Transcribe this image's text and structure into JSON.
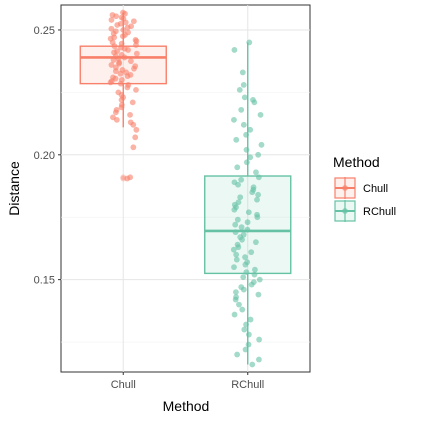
{
  "chart_data": {
    "type": "box",
    "xlabel": "Method",
    "ylabel": "Distance",
    "ylim": [
      0.113,
      0.26
    ],
    "y_ticks": [
      0.15,
      0.2,
      0.25
    ],
    "y_tick_labels": [
      "0.15",
      "0.20",
      "0.25"
    ],
    "categories": [
      "Chull",
      "RChull"
    ],
    "grid": true,
    "legend": {
      "title": "Method",
      "position": "right",
      "entries": [
        "Chull",
        "RChull"
      ]
    },
    "colors": {
      "Chull": "#f8806a",
      "RChull": "#66c2a5"
    },
    "series": [
      {
        "name": "Chull",
        "box": {
          "lower_whisker": 0.211,
          "q1": 0.2285,
          "median": 0.239,
          "q3": 0.2435,
          "upper_whisker": 0.257
        },
        "points": [
          0.257,
          0.2565,
          0.256,
          0.2555,
          0.255,
          0.2545,
          0.254,
          0.2535,
          0.253,
          0.2525,
          0.252,
          0.2515,
          0.251,
          0.2505,
          0.25,
          0.2495,
          0.249,
          0.2485,
          0.248,
          0.2475,
          0.247,
          0.2465,
          0.246,
          0.2455,
          0.245,
          0.2445,
          0.244,
          0.2435,
          0.243,
          0.2425,
          0.242,
          0.2415,
          0.241,
          0.2405,
          0.24,
          0.2395,
          0.239,
          0.2385,
          0.238,
          0.2375,
          0.237,
          0.2365,
          0.236,
          0.2355,
          0.235,
          0.2345,
          0.234,
          0.2335,
          0.233,
          0.2325,
          0.232,
          0.2315,
          0.231,
          0.2305,
          0.23,
          0.2295,
          0.229,
          0.2285,
          0.228,
          0.227,
          0.226,
          0.225,
          0.224,
          0.223,
          0.222,
          0.221,
          0.22,
          0.219,
          0.218,
          0.217,
          0.216,
          0.215,
          0.214,
          0.213,
          0.212,
          0.21,
          0.207,
          0.203,
          0.191,
          0.1905
        ],
        "outliers": [
          0.191,
          0.1905
        ]
      },
      {
        "name": "RChull",
        "box": {
          "lower_whisker": 0.116,
          "q1": 0.1525,
          "median": 0.1695,
          "q3": 0.1915,
          "upper_whisker": 0.245
        },
        "points": [
          0.245,
          0.242,
          0.233,
          0.228,
          0.226,
          0.223,
          0.222,
          0.221,
          0.218,
          0.216,
          0.214,
          0.212,
          0.21,
          0.208,
          0.206,
          0.204,
          0.202,
          0.2,
          0.199,
          0.197,
          0.195,
          0.193,
          0.191,
          0.19,
          0.189,
          0.188,
          0.187,
          0.186,
          0.185,
          0.184,
          0.183,
          0.182,
          0.181,
          0.18,
          0.179,
          0.178,
          0.177,
          0.176,
          0.175,
          0.174,
          0.173,
          0.172,
          0.171,
          0.17,
          0.169,
          0.168,
          0.167,
          0.166,
          0.165,
          0.164,
          0.163,
          0.162,
          0.161,
          0.16,
          0.159,
          0.158,
          0.157,
          0.156,
          0.155,
          0.154,
          0.153,
          0.152,
          0.151,
          0.15,
          0.149,
          0.148,
          0.147,
          0.146,
          0.145,
          0.144,
          0.143,
          0.142,
          0.14,
          0.138,
          0.136,
          0.134,
          0.132,
          0.13,
          0.128,
          0.126,
          0.124,
          0.122,
          0.12,
          0.118,
          0.116
        ],
        "outliers": []
      }
    ]
  }
}
